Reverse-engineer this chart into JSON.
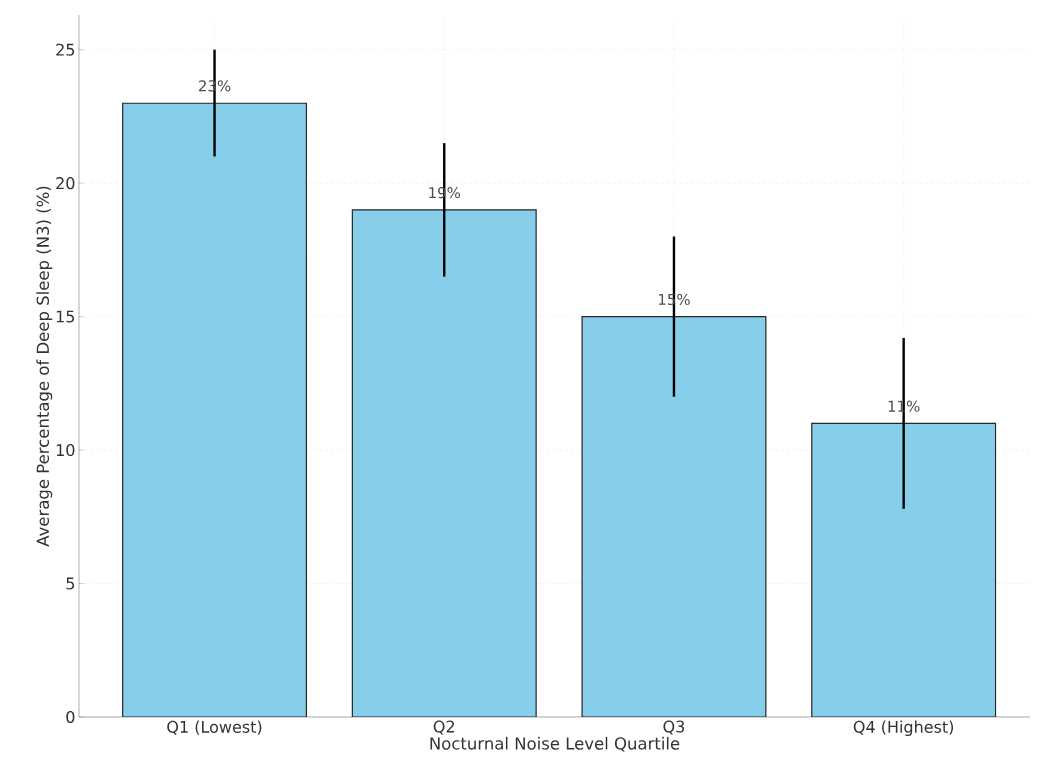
{
  "chart_data": {
    "type": "bar",
    "xlabel": "Nocturnal Noise Level Quartile",
    "ylabel": "Average Percentage of Deep Sleep (N3) (%)",
    "categories": [
      "Q1 (Lowest)",
      "Q2",
      "Q3",
      "Q4 (Highest)"
    ],
    "values": [
      23,
      19,
      15,
      11
    ],
    "errors": [
      2,
      2.5,
      3,
      3.2
    ],
    "value_labels": [
      "23%",
      "19%",
      "15%",
      "11%"
    ],
    "color": "#87ceeb",
    "ylim": [
      0,
      26.3
    ],
    "yticks": [
      0,
      5,
      10,
      15,
      20,
      25
    ],
    "grid": true
  }
}
